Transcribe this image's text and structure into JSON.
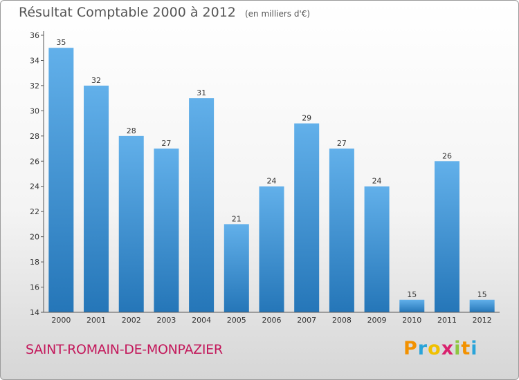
{
  "header": {
    "title": "Résultat Comptable 2000 à 2012",
    "unit": "(en milliers d'€)"
  },
  "footer": {
    "commune": "SAINT-ROMAIN-DE-MONPAZIER",
    "logo": [
      "P",
      "r",
      "o",
      "x",
      "i",
      "t",
      "i"
    ]
  },
  "colors": {
    "bar_top": "#62b0ea",
    "bar_bottom": "#2576b8",
    "commune": "#c3185b"
  },
  "chart_data": {
    "type": "bar",
    "title": "Résultat Comptable 2000 à 2012",
    "subtitle": "(en milliers d'€)",
    "categories": [
      "2000",
      "2001",
      "2002",
      "2003",
      "2004",
      "2005",
      "2006",
      "2007",
      "2008",
      "2009",
      "2010",
      "2011",
      "2012"
    ],
    "values": [
      35,
      32,
      28,
      27,
      31,
      21,
      24,
      29,
      27,
      24,
      15,
      26,
      15
    ],
    "ylim": [
      14,
      36
    ],
    "yticks": [
      14,
      16,
      18,
      20,
      22,
      24,
      26,
      28,
      30,
      32,
      34,
      36
    ],
    "grid": false,
    "legend": "none"
  }
}
